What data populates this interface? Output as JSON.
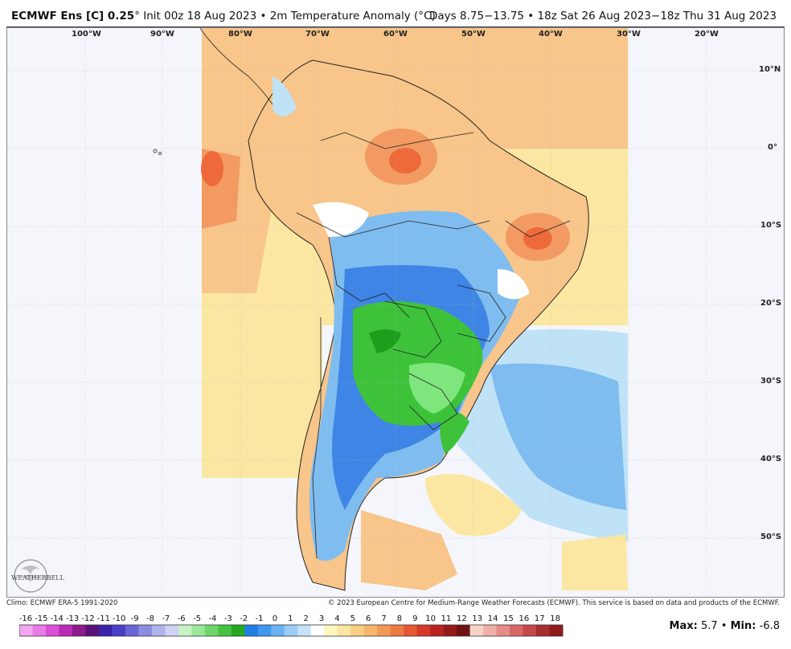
{
  "header": {
    "model": "ECMWF Ens [C] 0.25",
    "degree_mark": "°",
    "init": "Init 00z 18 Aug 2023",
    "bullet": "•",
    "variable": "2m Temperature Anomaly (°C)",
    "right": "Days 8.75−13.75 • 18z Sat 26 Aug 2023−18z Thu 31 Aug 2023"
  },
  "map": {
    "region": "South America",
    "longitude_labels": [
      "100°W",
      "90°W",
      "80°W",
      "70°W",
      "60°W",
      "50°W",
      "40°W",
      "30°W",
      "20°W"
    ],
    "latitude_labels": [
      "10°N",
      "0°",
      "10°S",
      "20°S",
      "30°S",
      "40°S",
      "50°S"
    ],
    "colors": {
      "ocean_background": "#f4f6fc",
      "warm_light": "#fbe7a2",
      "warm_mid": "#f8c58a",
      "warm_strong": "#f29a62",
      "warm_max": "#ee6a3a",
      "cool_light": "#bfe2f7",
      "cool_mid": "#7fbdf0",
      "cool_strong": "#3f85e6",
      "cool_deep": "#2a5fd0",
      "green_light": "#7ee67c",
      "green_mid": "#3dc23a",
      "green_dark": "#1f9d1d"
    }
  },
  "logo": {
    "text": "WEATHERBELL"
  },
  "footer": {
    "climo": "Climo: ECMWF ERA-5 1991-2020",
    "copyright": "© 2023 European Centre for Medium-Range Weather Forecasts (ECMWF). This service is based on data and products of the ECMWF."
  },
  "colorbar": {
    "ticks": [
      "-16",
      "-15",
      "-14",
      "-13",
      "-12",
      "-11",
      "-10",
      "-9",
      "-8",
      "-7",
      "-6",
      "-5",
      "-4",
      "-3",
      "-2",
      "-1",
      "0",
      "1",
      "2",
      "3",
      "4",
      "5",
      "6",
      "7",
      "8",
      "9",
      "10",
      "11",
      "12",
      "13",
      "14",
      "15",
      "16",
      "17",
      "18"
    ],
    "colors": [
      "#f3a6f0",
      "#e87be6",
      "#d94fd6",
      "#bb2bb5",
      "#8e1b8a",
      "#5a1077",
      "#3a23a8",
      "#4a3fc7",
      "#6a66d6",
      "#8c8de0",
      "#aeb3ea",
      "#cfd2f2",
      "#c8f3c4",
      "#9be69a",
      "#6fd66c",
      "#45c443",
      "#25a822",
      "#1f7fe3",
      "#3f97ee",
      "#6cb2f3",
      "#9ccbf6",
      "#c7e2fa",
      "#ffffff",
      "#fff6bf",
      "#fbe7a2",
      "#f8cf84",
      "#f5b56c",
      "#f19a58",
      "#ec7b43",
      "#e55833",
      "#d6392a",
      "#bb2323",
      "#951b1b",
      "#6f1212",
      "#f6d2c6",
      "#efb0a6",
      "#e58d86",
      "#d86767",
      "#c54848",
      "#a82f2f",
      "#8f1b1b"
    ]
  },
  "stats": {
    "max_label": "Max:",
    "max_value": "5.7",
    "sep": "•",
    "min_label": "Min:",
    "min_value": "-6.8"
  }
}
